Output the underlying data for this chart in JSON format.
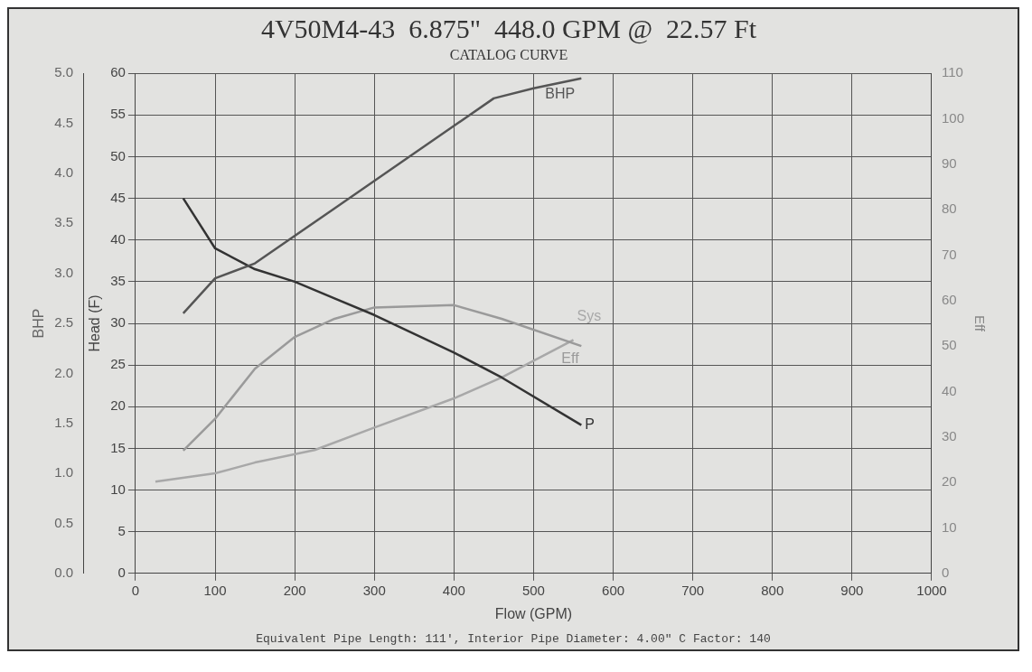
{
  "chart_data": {
    "type": "line",
    "title": "4V50M4-43  6.875\"  448.0 GPM @  22.57 Ft",
    "subtitle": "CATALOG CURVE",
    "xlabel": "Flow (GPM)",
    "ylabel": "Head (F)",
    "y2label": "BHP",
    "y3label": "Eff",
    "xlim": [
      0,
      1000
    ],
    "xticks": [
      0,
      100,
      200,
      300,
      400,
      500,
      600,
      700,
      800,
      900,
      1000
    ],
    "ylim": [
      0,
      60
    ],
    "yticks": [
      0,
      5,
      10,
      15,
      20,
      25,
      30,
      35,
      40,
      45,
      50,
      55,
      60
    ],
    "y2lim": [
      0,
      5
    ],
    "y2ticks": [
      {
        "value": 0,
        "label": "0.0"
      },
      0.5,
      {
        "value": 1,
        "label": "1.0"
      },
      1.5,
      {
        "value": 2,
        "label": "2.0"
      },
      2.5,
      {
        "value": 3,
        "label": "3.0"
      },
      3.5,
      {
        "value": 4,
        "label": "4.0"
      },
      4.5,
      {
        "value": 5,
        "label": "5.0"
      }
    ],
    "y3lim": [
      0,
      110
    ],
    "y3ticks": [
      0,
      10,
      20,
      30,
      40,
      50,
      60,
      70,
      80,
      90,
      100,
      110
    ],
    "grid": true,
    "legend": false,
    "marker": "none",
    "line_style": "solid",
    "series": [
      {
        "name": "BHP",
        "color": "#555555",
        "axis": "y2",
        "x": [
          60,
          100,
          150,
          250,
          350,
          450,
          500,
          560
        ],
        "values": [
          2.6,
          2.95,
          3.1,
          3.65,
          4.2,
          4.75,
          4.85,
          4.95
        ]
      },
      {
        "name": "P",
        "color": "#333333",
        "x": [
          60,
          100,
          150,
          200,
          250,
          300,
          400,
          460,
          560
        ],
        "values": [
          45,
          39,
          36.5,
          35,
          33,
          31,
          26.5,
          23.5,
          17.8
        ]
      },
      {
        "name": "Eff",
        "color": "#9a9a9a",
        "axis": "y3",
        "x": [
          60,
          100,
          150,
          200,
          250,
          300,
          400,
          460,
          560
        ],
        "values": [
          27,
          34,
          45,
          52,
          56,
          58.5,
          59,
          56,
          50
        ]
      },
      {
        "name": "Sys",
        "color": "#a8a8a8",
        "x": [
          25,
          100,
          150,
          225,
          300,
          400,
          460,
          550
        ],
        "values": [
          11,
          12,
          13.3,
          14.8,
          17.5,
          21,
          23.5,
          28
        ]
      }
    ],
    "annotations": [
      "Equivalent Pipe Length: 111', Interior Pipe Diameter: 4.00\" C Factor: 140"
    ]
  }
}
